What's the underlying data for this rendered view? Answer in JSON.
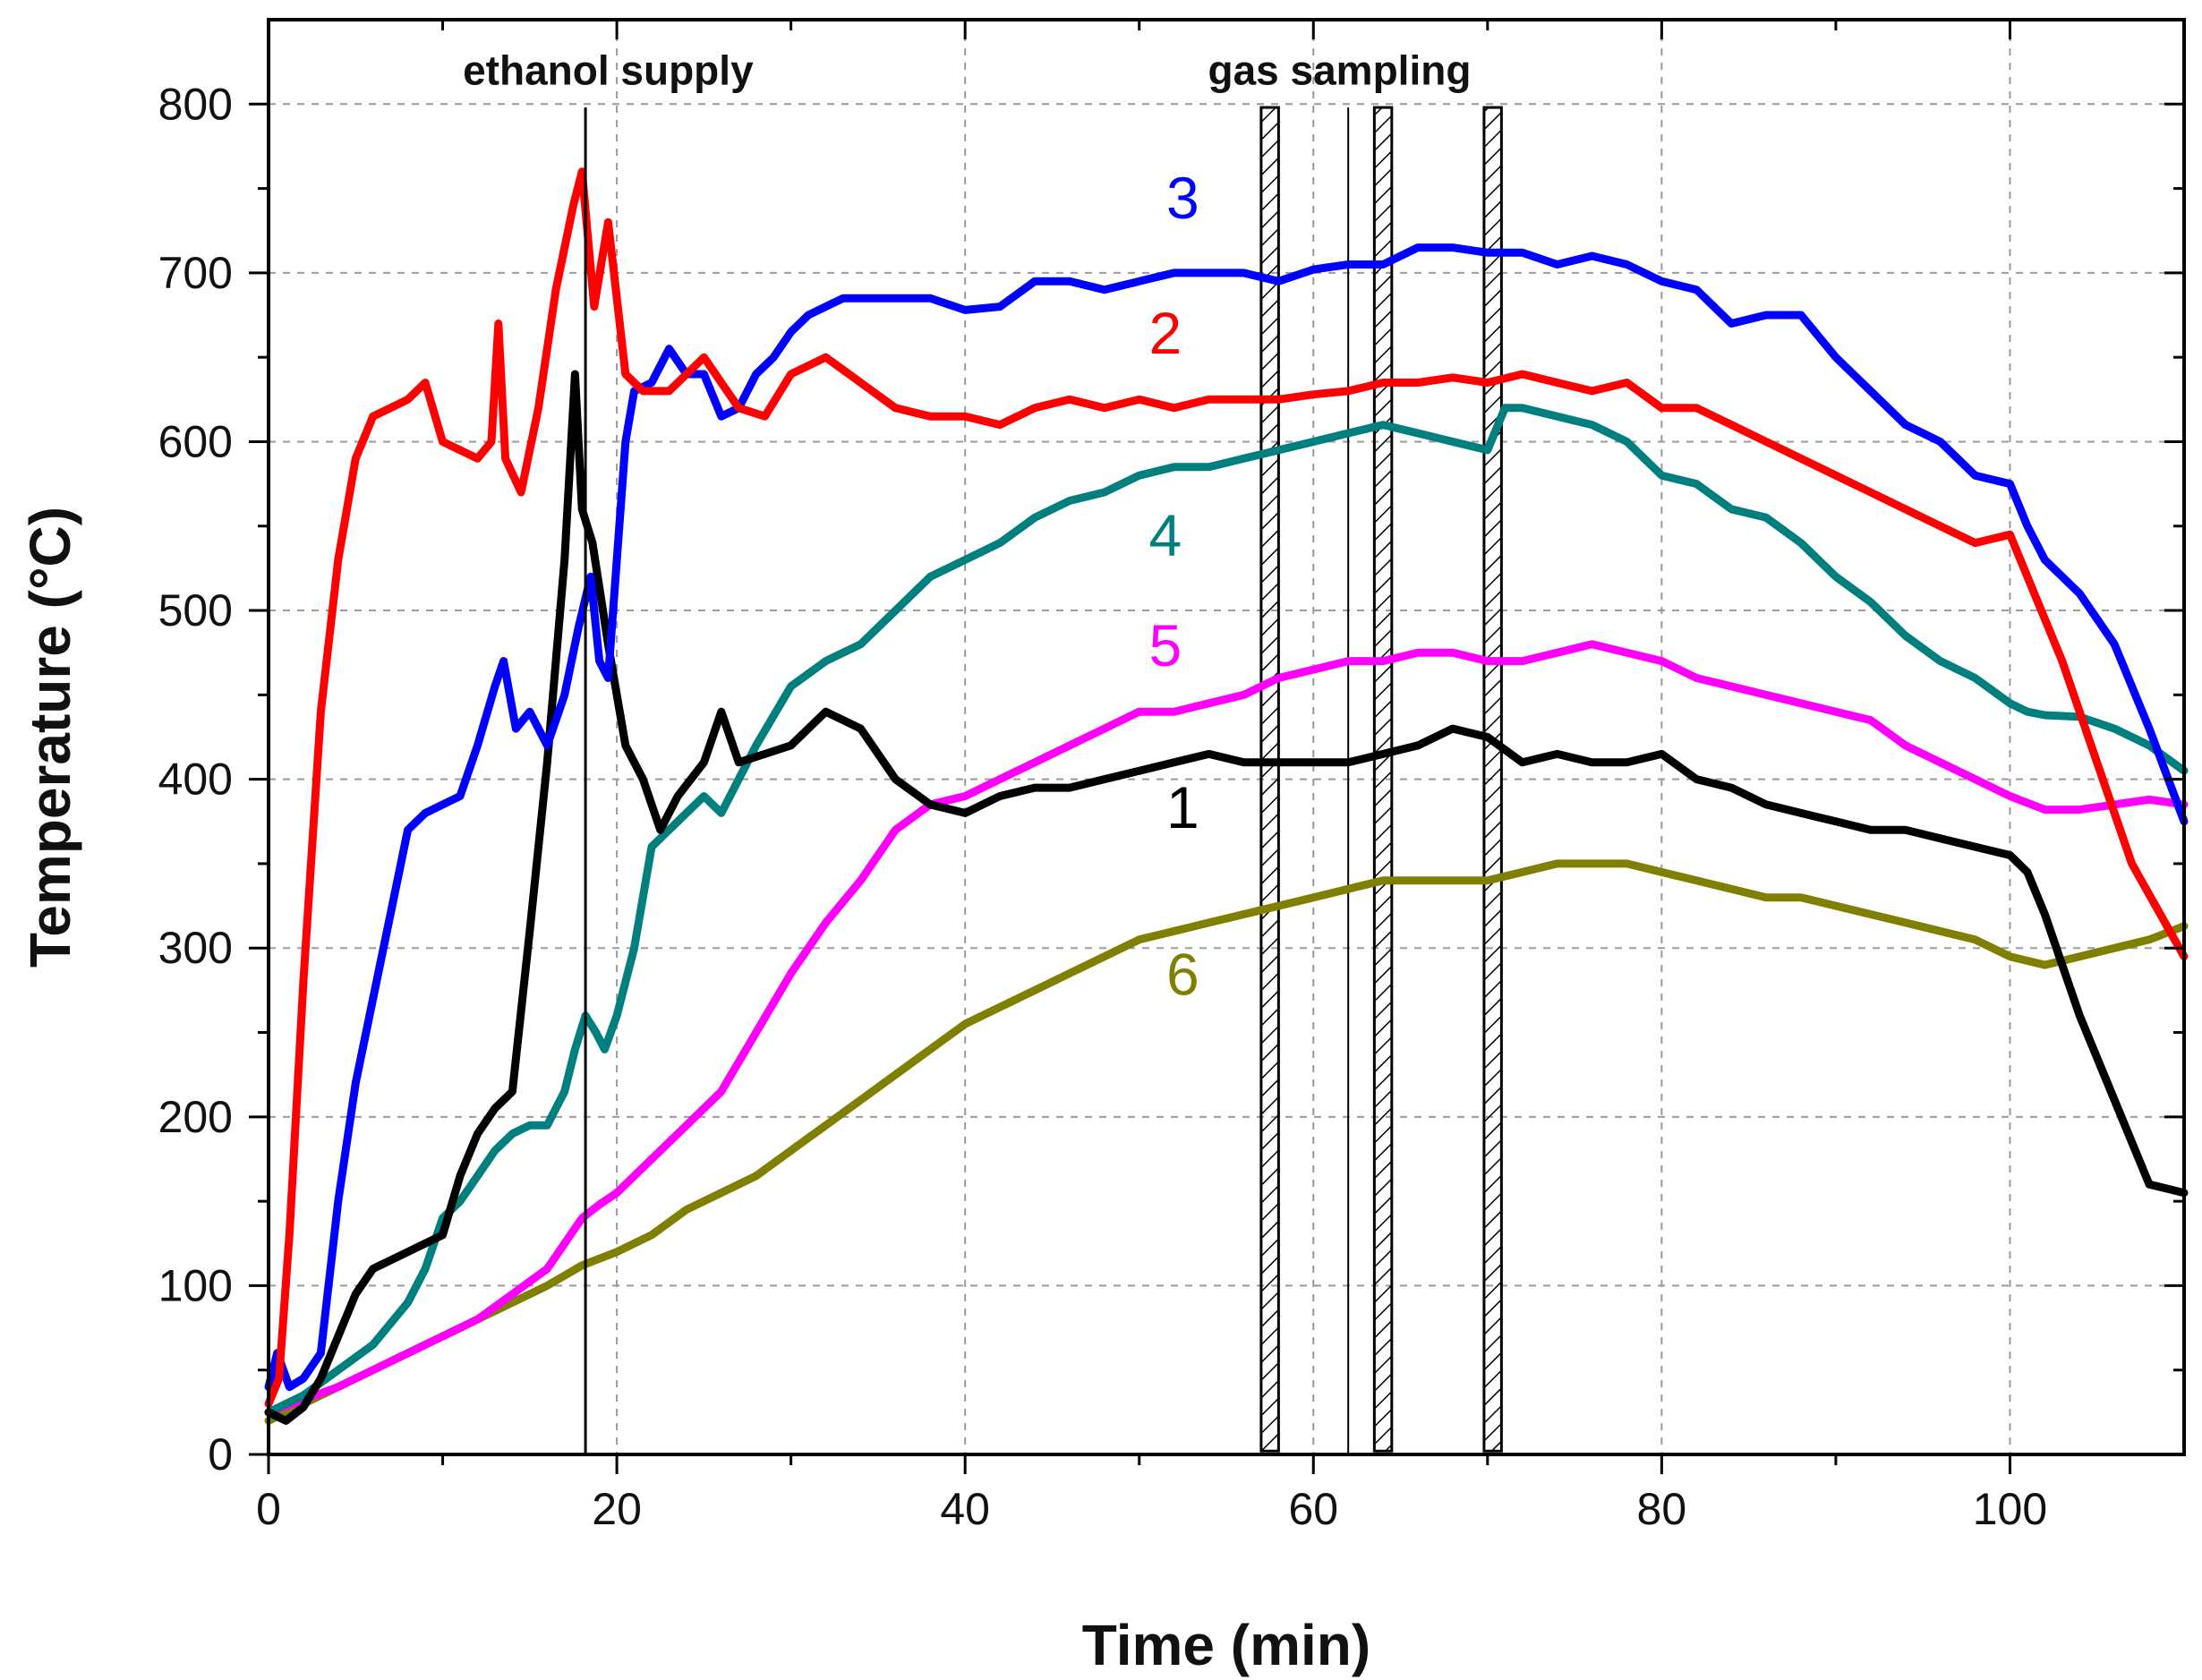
{
  "chart_data": {
    "type": "line",
    "title": "",
    "xlabel": "Time (min)",
    "ylabel": "Temperature (°C)",
    "xlim": [
      0,
      110
    ],
    "ylim": [
      0,
      850
    ],
    "xticks": [
      0,
      20,
      40,
      60,
      80,
      100
    ],
    "yticks": [
      0,
      100,
      200,
      300,
      400,
      500,
      600,
      700,
      800
    ],
    "grid": true,
    "annotations": [
      {
        "text": "ethanol supply",
        "x": 19.5,
        "y": 820
      },
      {
        "text": "gas sampling",
        "x": 61.5,
        "y": 820
      }
    ],
    "vertical_line": {
      "name": "ethanol supply end",
      "x": 18.2
    },
    "sampling_windows": [
      {
        "x0": 57.0,
        "x1": 58.0
      },
      {
        "x0": 63.5,
        "x1": 64.5
      },
      {
        "x0": 69.8,
        "x1": 70.8
      }
    ],
    "reference_line": {
      "x": 62.0
    },
    "series": [
      {
        "name": "1",
        "color": "#000000",
        "label_at": [
          52.5,
          384
        ],
        "x": [
          0,
          1,
          2,
          3,
          4,
          5,
          6,
          8,
          10,
          11,
          12,
          13,
          14,
          15,
          16,
          17,
          17.6,
          18,
          18.6,
          19.5,
          20.5,
          21.5,
          22.5,
          23.5,
          25,
          26,
          27,
          28.5,
          30,
          32,
          34,
          36,
          38,
          40,
          42,
          44,
          46,
          48,
          50,
          52,
          54,
          56,
          58,
          60,
          62,
          64,
          66,
          68,
          70,
          72,
          74,
          76,
          78,
          80,
          82,
          84,
          86,
          88,
          90,
          92,
          94,
          96,
          98,
          100,
          101,
          102,
          103,
          104,
          106,
          108,
          110
        ],
        "y": [
          25,
          20,
          28,
          45,
          70,
          95,
          110,
          120,
          130,
          165,
          190,
          205,
          215,
          310,
          410,
          530,
          640,
          560,
          540,
          480,
          420,
          400,
          370,
          390,
          410,
          440,
          410,
          415,
          420,
          440,
          430,
          400,
          385,
          380,
          390,
          395,
          395,
          400,
          405,
          410,
          415,
          410,
          410,
          410,
          410,
          415,
          420,
          430,
          425,
          410,
          415,
          410,
          410,
          415,
          400,
          395,
          385,
          380,
          375,
          370,
          370,
          365,
          360,
          355,
          345,
          320,
          290,
          260,
          210,
          160,
          155
        ]
      },
      {
        "name": "2",
        "color": "#ff0000",
        "label_at": [
          51.5,
          665
        ],
        "x": [
          0,
          0.6,
          1.2,
          2,
          3,
          4,
          5,
          6,
          7,
          8,
          9,
          10,
          11,
          12,
          12.8,
          13.2,
          13.6,
          14.5,
          15.5,
          16.5,
          17.5,
          18,
          18.7,
          19.5,
          20.5,
          21.5,
          23,
          25,
          27,
          28.5,
          30,
          32,
          34,
          36,
          38,
          40,
          42,
          44,
          46,
          48,
          50,
          52,
          54,
          56,
          58,
          60,
          62,
          64,
          66,
          68,
          70,
          72,
          74,
          76,
          78,
          80,
          82,
          84,
          86,
          88,
          90,
          92,
          94,
          96,
          98,
          100,
          101,
          103,
          105,
          107,
          110
        ],
        "y": [
          30,
          45,
          130,
          280,
          440,
          530,
          590,
          615,
          620,
          625,
          635,
          600,
          595,
          590,
          600,
          670,
          590,
          570,
          620,
          690,
          740,
          760,
          680,
          730,
          640,
          630,
          630,
          650,
          620,
          615,
          640,
          650,
          635,
          620,
          615,
          615,
          610,
          620,
          625,
          620,
          625,
          620,
          625,
          625,
          625,
          628,
          630,
          635,
          635,
          638,
          635,
          640,
          635,
          630,
          635,
          620,
          620,
          610,
          600,
          590,
          580,
          570,
          560,
          550,
          540,
          545,
          520,
          470,
          410,
          350,
          295
        ]
      },
      {
        "name": "3",
        "color": "#0000ff",
        "label_at": [
          52.5,
          745
        ],
        "x": [
          0,
          0.5,
          1.2,
          2,
          3,
          4,
          5,
          6,
          7,
          8,
          9,
          10,
          11,
          12,
          13,
          13.5,
          14.2,
          15,
          16,
          17,
          17.8,
          18.5,
          19,
          19.5,
          20.5,
          21,
          22,
          23,
          24,
          25,
          26,
          27,
          28,
          29,
          30,
          31,
          32,
          33,
          34,
          36,
          38,
          40,
          42,
          44,
          46,
          48,
          50,
          52,
          54,
          56,
          58,
          60,
          62,
          64,
          66,
          68,
          70,
          72,
          74,
          76,
          78,
          80,
          82,
          84,
          86,
          88,
          90,
          92,
          94,
          96,
          98,
          100,
          101,
          102,
          104,
          106,
          108,
          110
        ],
        "y": [
          40,
          60,
          40,
          45,
          60,
          150,
          220,
          270,
          320,
          370,
          380,
          385,
          390,
          420,
          455,
          470,
          430,
          440,
          420,
          450,
          490,
          520,
          470,
          460,
          600,
          630,
          635,
          655,
          640,
          640,
          615,
          620,
          640,
          650,
          665,
          675,
          680,
          685,
          685,
          685,
          685,
          678,
          680,
          695,
          695,
          690,
          695,
          700,
          700,
          700,
          695,
          702,
          705,
          705,
          715,
          715,
          712,
          712,
          705,
          710,
          705,
          695,
          690,
          670,
          675,
          675,
          650,
          630,
          610,
          600,
          580,
          575,
          550,
          530,
          510,
          480,
          430,
          375
        ]
      },
      {
        "name": "4",
        "color": "#007f7f",
        "label_at": [
          51.5,
          545
        ],
        "x": [
          0,
          2,
          4,
          6,
          8,
          9,
          10,
          11,
          12,
          13,
          14,
          15,
          16,
          17,
          17.6,
          18.2,
          18.8,
          19.3,
          20,
          21,
          22,
          23,
          24,
          25,
          26,
          27,
          28,
          30,
          32,
          34,
          36,
          38,
          40,
          42,
          44,
          46,
          48,
          50,
          52,
          54,
          56,
          58,
          60,
          62,
          64,
          66,
          68,
          70,
          71,
          72,
          74,
          76,
          78,
          80,
          82,
          84,
          86,
          88,
          90,
          92,
          94,
          96,
          98,
          100,
          101,
          102,
          104,
          106,
          108,
          110
        ],
        "y": [
          25,
          35,
          50,
          65,
          90,
          110,
          140,
          150,
          165,
          180,
          190,
          195,
          195,
          215,
          240,
          260,
          250,
          240,
          260,
          300,
          360,
          370,
          380,
          390,
          380,
          400,
          420,
          455,
          470,
          480,
          500,
          520,
          530,
          540,
          555,
          565,
          570,
          580,
          585,
          585,
          590,
          595,
          600,
          605,
          610,
          605,
          600,
          595,
          620,
          620,
          615,
          610,
          600,
          580,
          575,
          560,
          555,
          540,
          520,
          505,
          485,
          470,
          460,
          445,
          440,
          438,
          437,
          430,
          420,
          405
        ]
      },
      {
        "name": "5",
        "color": "#ff00ff",
        "label_at": [
          51.5,
          480
        ],
        "x": [
          0,
          4,
          8,
          12,
          16,
          18,
          19,
          20,
          22,
          24,
          26,
          28,
          30,
          32,
          34,
          36,
          38,
          40,
          42,
          44,
          46,
          48,
          50,
          52,
          54,
          56,
          58,
          60,
          62,
          64,
          66,
          68,
          70,
          72,
          74,
          76,
          78,
          80,
          82,
          84,
          86,
          88,
          90,
          92,
          94,
          96,
          98,
          100,
          102,
          104,
          106,
          108,
          110
        ],
        "y": [
          25,
          40,
          60,
          80,
          110,
          140,
          148,
          155,
          175,
          195,
          215,
          250,
          285,
          315,
          340,
          370,
          385,
          390,
          400,
          410,
          420,
          430,
          440,
          440,
          445,
          450,
          460,
          465,
          470,
          470,
          475,
          475,
          470,
          470,
          475,
          480,
          475,
          470,
          460,
          455,
          450,
          445,
          440,
          435,
          420,
          410,
          400,
          390,
          382,
          382,
          385,
          388,
          385
        ]
      },
      {
        "name": "6",
        "color": "#808000",
        "label_at": [
          52.5,
          285
        ],
        "x": [
          0,
          4,
          8,
          12,
          16,
          18,
          20,
          22,
          24,
          26,
          28,
          30,
          32,
          34,
          36,
          38,
          40,
          42,
          44,
          46,
          48,
          50,
          52,
          54,
          56,
          58,
          60,
          62,
          64,
          66,
          68,
          70,
          72,
          74,
          76,
          78,
          80,
          82,
          84,
          86,
          88,
          90,
          92,
          94,
          96,
          98,
          100,
          102,
          104,
          106,
          108,
          110
        ],
        "y": [
          20,
          40,
          60,
          80,
          100,
          112,
          120,
          130,
          145,
          155,
          165,
          180,
          195,
          210,
          225,
          240,
          255,
          265,
          275,
          285,
          295,
          305,
          310,
          315,
          320,
          325,
          330,
          335,
          340,
          340,
          340,
          340,
          345,
          350,
          350,
          350,
          345,
          340,
          335,
          330,
          330,
          325,
          320,
          315,
          310,
          305,
          295,
          290,
          295,
          300,
          305,
          313
        ]
      }
    ]
  }
}
